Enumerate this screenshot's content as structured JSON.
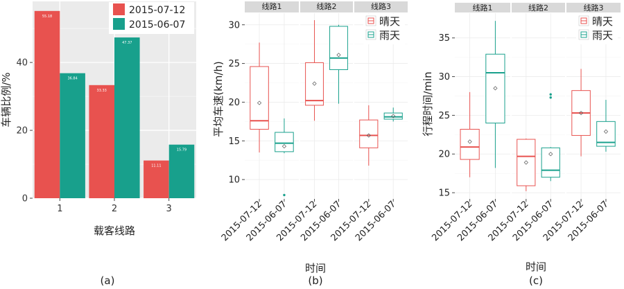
{
  "chart_data": [
    {
      "type": "bar",
      "panel_label": "(a)",
      "xlabel": "载客线路",
      "ylabel": "车辆比例/%",
      "categories": [
        "1",
        "2",
        "3"
      ],
      "ylim": [
        0,
        58
      ],
      "yticks": [
        0,
        20,
        40
      ],
      "grid": true,
      "legend_position": "top-right",
      "series": [
        {
          "name": "2015-07-12",
          "color": "#E8524F",
          "values": [
            55.18,
            33.33,
            11.11
          ],
          "labels": [
            "55.18",
            "33.33",
            "11.11"
          ]
        },
        {
          "name": "2015-06-07",
          "color": "#18A08C",
          "values": [
            36.84,
            47.37,
            15.79
          ],
          "labels": [
            "36.84",
            "47.37",
            "15.79"
          ]
        }
      ]
    },
    {
      "type": "box",
      "panel_label": "(b)",
      "xlabel": "时间",
      "ylabel": "平均车速(km/h)",
      "ylim": [
        7.5,
        31.5
      ],
      "yticks": [
        10,
        15,
        20,
        25,
        30
      ],
      "grid": true,
      "legend_position": "top-right",
      "legend": [
        {
          "name": "晴天",
          "color": "#E8524F"
        },
        {
          "name": "雨天",
          "color": "#18A08C"
        }
      ],
      "facets": [
        {
          "strip": "线路1",
          "boxes": [
            {
              "x": "2015-07-12",
              "series": "晴天",
              "min": 13.5,
              "q1": 16.5,
              "median": 17.6,
              "q3": 24.6,
              "max": 27.7,
              "mean": 19.9,
              "outliers": []
            },
            {
              "x": "2015-06-07",
              "series": "雨天",
              "min": 13.4,
              "q1": 13.6,
              "median": 14.7,
              "q3": 16.1,
              "max": 17.9,
              "mean": 14.3,
              "outliers": [
                8.0
              ]
            }
          ]
        },
        {
          "strip": "线路2",
          "boxes": [
            {
              "x": "2015-07-12",
              "series": "晴天",
              "min": 17.6,
              "q1": 19.6,
              "median": 20.2,
              "q3": 25.1,
              "max": 30.6,
              "mean": 22.4,
              "outliers": []
            },
            {
              "x": "2015-06-07",
              "series": "雨天",
              "min": 19.8,
              "q1": 24.2,
              "median": 25.7,
              "q3": 29.8,
              "max": 30.0,
              "mean": 26.1,
              "outliers": []
            }
          ]
        },
        {
          "strip": "线路3",
          "boxes": [
            {
              "x": "2015-07-12",
              "series": "晴天",
              "min": 11.8,
              "q1": 14.1,
              "median": 15.7,
              "q3": 17.7,
              "max": 19.6,
              "mean": 15.7,
              "outliers": []
            },
            {
              "x": "2015-06-07",
              "series": "雨天",
              "min": 17.5,
              "q1": 17.8,
              "median": 18.1,
              "q3": 18.6,
              "max": 19.3,
              "mean": 18.2,
              "outliers": []
            }
          ]
        }
      ]
    },
    {
      "type": "box",
      "panel_label": "(c)",
      "xlabel": "时间",
      "ylabel": "行程时间/min",
      "ylim": [
        14.2,
        38.2
      ],
      "yticks": [
        15,
        20,
        25,
        30,
        35
      ],
      "grid": true,
      "legend_position": "top-right",
      "legend": [
        {
          "name": "晴天",
          "color": "#E8524F"
        },
        {
          "name": "雨天",
          "color": "#18A08C"
        }
      ],
      "facets": [
        {
          "strip": "线路1",
          "boxes": [
            {
              "x": "2015-07-12",
              "series": "晴天",
              "min": 17.0,
              "q1": 19.3,
              "median": 20.9,
              "q3": 23.2,
              "max": 28.0,
              "mean": 21.6,
              "outliers": []
            },
            {
              "x": "2015-06-07",
              "series": "雨天",
              "min": 18.2,
              "q1": 24.0,
              "median": 30.5,
              "q3": 32.9,
              "max": 37.2,
              "mean": 28.5,
              "outliers": []
            }
          ]
        },
        {
          "strip": "线路2",
          "boxes": [
            {
              "x": "2015-07-12",
              "series": "晴天",
              "min": 15.2,
              "q1": 15.9,
              "median": 19.7,
              "q3": 21.9,
              "max": 22.0,
              "mean": 18.9,
              "outliers": []
            },
            {
              "x": "2015-06-07",
              "series": "雨天",
              "min": 16.5,
              "q1": 17.0,
              "median": 17.9,
              "q3": 20.8,
              "max": 20.9,
              "mean": 20.0,
              "outliers": [
                27.3,
                27.7
              ]
            }
          ]
        },
        {
          "strip": "线路3",
          "boxes": [
            {
              "x": "2015-07-12",
              "series": "晴天",
              "min": 19.7,
              "q1": 22.4,
              "median": 25.3,
              "q3": 28.2,
              "max": 31.0,
              "mean": 25.3,
              "outliers": []
            },
            {
              "x": "2015-06-07",
              "series": "雨天",
              "min": 20.3,
              "q1": 21.0,
              "median": 21.5,
              "q3": 24.2,
              "max": 27.0,
              "mean": 22.9,
              "outliers": []
            }
          ]
        }
      ]
    }
  ]
}
